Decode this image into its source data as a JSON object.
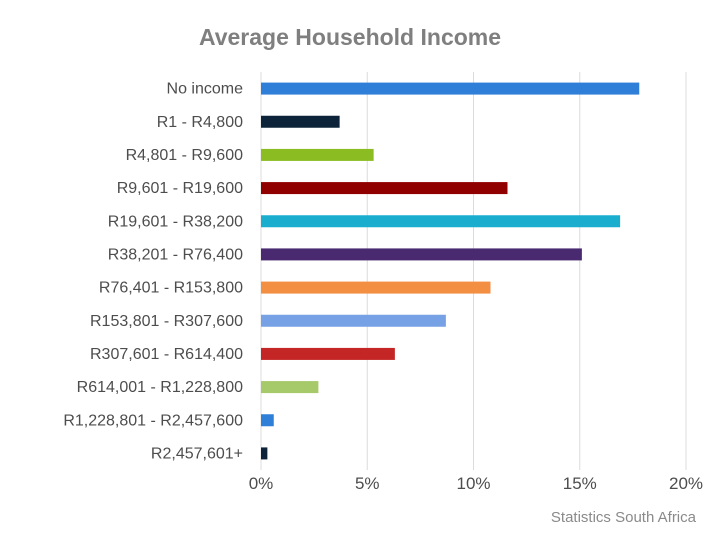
{
  "chart_data": {
    "type": "bar",
    "orientation": "horizontal",
    "title": "Average Household Income",
    "source": "Statistics South Africa",
    "categories": [
      "No income",
      "R1 - R4,800",
      "R4,801 - R9,600",
      "R9,601 - R19,600",
      "R19,601 - R38,200",
      "R38,201 - R76,400",
      "R76,401 - R153,800",
      "R153,801 - R307,600",
      "R307,601 - R614,400",
      "R614,001 - R1,228,800",
      "R1,228,801 - R2,457,600",
      "R2,457,601+"
    ],
    "values": [
      17.8,
      3.7,
      5.3,
      11.6,
      16.9,
      15.1,
      10.8,
      8.7,
      6.3,
      2.7,
      0.6,
      0.3
    ],
    "colors": [
      "#2f7ed8",
      "#0d233a",
      "#8bbc21",
      "#910000",
      "#1aadce",
      "#492970",
      "#f28f43",
      "#77a1e5",
      "#c42525",
      "#a6c96a",
      "#2f7ed8",
      "#0d233a"
    ],
    "xticks": [
      "0%",
      "5%",
      "10%",
      "15%",
      "20%"
    ],
    "xlim": [
      0,
      20
    ],
    "unit": "%",
    "grid": true,
    "legend": "none"
  }
}
